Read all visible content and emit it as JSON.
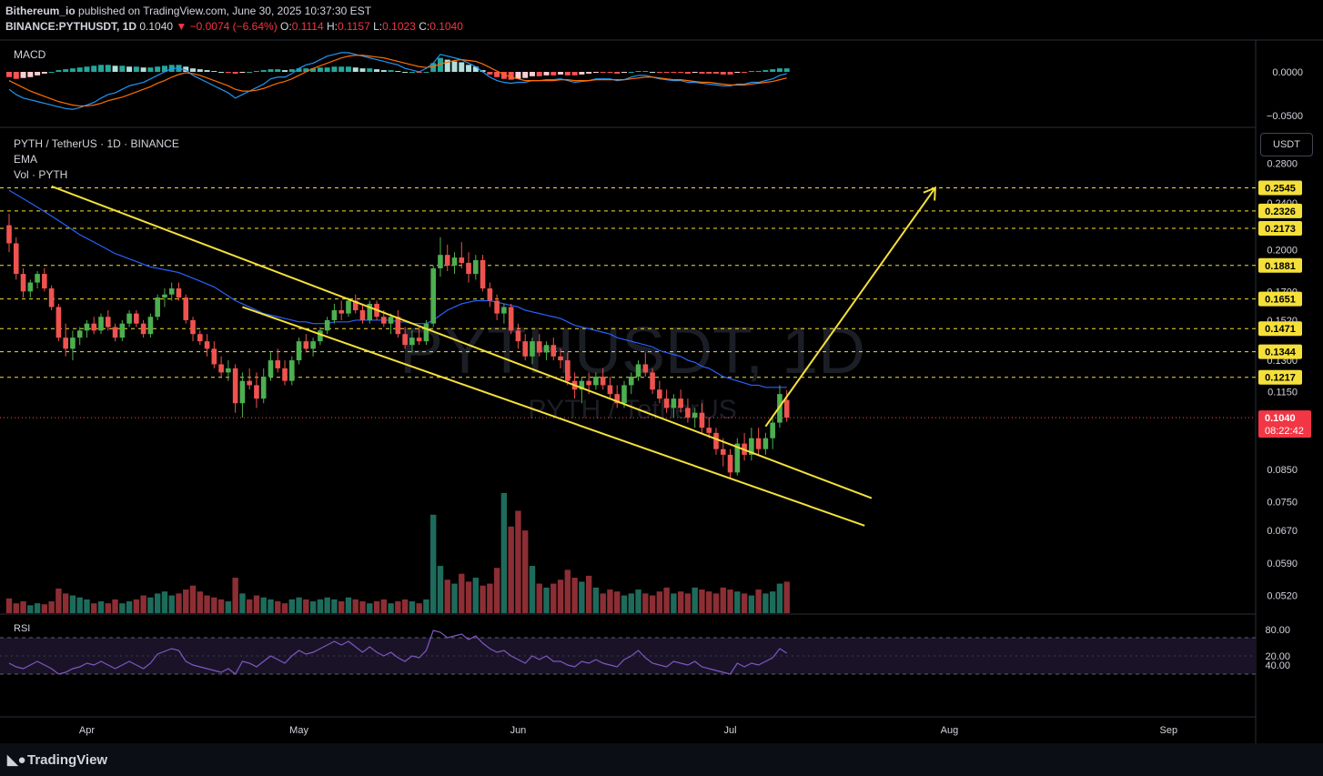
{
  "header": {
    "line1_user": "Bithereum_io",
    "line1_rest": " published on TradingView.com, June 30, 2025 10:37:30 EST",
    "symbol": "BINANCE:PYTHUSDT, 1D",
    "price": "0.1040",
    "change": "▼ −0.0074 (−6.64%)",
    "o_label": "O:",
    "o_val": "0.1114",
    "h_label": "H:",
    "h_val": "0.1157",
    "l_label": "L:",
    "l_val": "0.1023",
    "c_label": "C:",
    "c_val": "0.1040"
  },
  "panes": {
    "macd_label": "MACD",
    "main_title": "PYTH / TetherUS · 1D · BINANCE",
    "ema_label": "EMA",
    "vol_label": "Vol · PYTH",
    "rsi_label": "RSI",
    "watermark": "PYTHUSDT, 1D",
    "watermark_sub": "PYTH / TetherUS",
    "currency_button": "USDT"
  },
  "footer": {
    "brand": "TradingView"
  },
  "colors": {
    "up": "#4caf50",
    "down": "#ef5350",
    "ema": "#2962ff",
    "pattern": "#f5e03a",
    "rsi": "#7e57c2",
    "macd": "#2196f3",
    "signal": "#ff6d00"
  },
  "chart_data": {
    "type": "candlestick",
    "price_axis_ticks": [
      "0.2800",
      "0.2400",
      "0.2000",
      "0.1700",
      "0.1520",
      "0.1300",
      "0.1150",
      "0.0850",
      "0.0750",
      "0.0670",
      "0.0590",
      "0.0520"
    ],
    "time_axis_ticks": [
      "Apr",
      "May",
      "Jun",
      "Jul",
      "Aug",
      "Sep"
    ],
    "macd_axis_ticks": [
      "0.0000",
      "−0.0500"
    ],
    "rsi_axis_ticks": [
      "80.00",
      "40.00",
      "20.00"
    ],
    "levels": [
      "0.2545",
      "0.2326",
      "0.2173",
      "0.1881",
      "0.1651",
      "0.1471",
      "0.1344",
      "0.1217"
    ],
    "last_price": "0.1040",
    "countdown": "08:22:42",
    "patterns": [
      {
        "type": "falling wedge",
        "upper_line": [
          [
            "2025-03-21",
            0.256
          ],
          [
            "2025-07-15",
            0.076
          ]
        ],
        "lower_line": [
          [
            "2025-04-17",
            0.16
          ],
          [
            "2025-07-14",
            0.0683
          ]
        ]
      },
      {
        "type": "target arrow",
        "from": [
          "2025-06-30",
          0.1005
        ],
        "to": [
          "2025-07-24",
          0.2545
        ]
      }
    ],
    "ohlc": [
      [
        0.22,
        0.23,
        0.198,
        0.205
      ],
      [
        0.205,
        0.21,
        0.178,
        0.182
      ],
      [
        0.182,
        0.186,
        0.166,
        0.17
      ],
      [
        0.17,
        0.178,
        0.166,
        0.176
      ],
      [
        0.176,
        0.184,
        0.172,
        0.182
      ],
      [
        0.182,
        0.186,
        0.17,
        0.172
      ],
      [
        0.172,
        0.174,
        0.158,
        0.16
      ],
      [
        0.16,
        0.162,
        0.14,
        0.142
      ],
      [
        0.142,
        0.15,
        0.132,
        0.136
      ],
      [
        0.136,
        0.146,
        0.13,
        0.142
      ],
      [
        0.142,
        0.148,
        0.138,
        0.146
      ],
      [
        0.146,
        0.152,
        0.142,
        0.15
      ],
      [
        0.15,
        0.154,
        0.144,
        0.146
      ],
      [
        0.146,
        0.156,
        0.144,
        0.154
      ],
      [
        0.154,
        0.158,
        0.146,
        0.148
      ],
      [
        0.148,
        0.15,
        0.14,
        0.142
      ],
      [
        0.142,
        0.152,
        0.14,
        0.15
      ],
      [
        0.15,
        0.158,
        0.148,
        0.156
      ],
      [
        0.156,
        0.158,
        0.148,
        0.15
      ],
      [
        0.15,
        0.152,
        0.142,
        0.144
      ],
      [
        0.144,
        0.156,
        0.142,
        0.154
      ],
      [
        0.154,
        0.168,
        0.152,
        0.166
      ],
      [
        0.166,
        0.172,
        0.16,
        0.168
      ],
      [
        0.168,
        0.176,
        0.164,
        0.172
      ],
      [
        0.172,
        0.176,
        0.164,
        0.166
      ],
      [
        0.166,
        0.168,
        0.15,
        0.152
      ],
      [
        0.152,
        0.154,
        0.14,
        0.144
      ],
      [
        0.144,
        0.146,
        0.138,
        0.14
      ],
      [
        0.14,
        0.144,
        0.132,
        0.136
      ],
      [
        0.136,
        0.14,
        0.126,
        0.128
      ],
      [
        0.128,
        0.132,
        0.122,
        0.124
      ],
      [
        0.124,
        0.13,
        0.12,
        0.126
      ],
      [
        0.126,
        0.128,
        0.106,
        0.11
      ],
      [
        0.11,
        0.124,
        0.104,
        0.12
      ],
      [
        0.12,
        0.126,
        0.116,
        0.118
      ],
      [
        0.118,
        0.124,
        0.108,
        0.112
      ],
      [
        0.112,
        0.126,
        0.11,
        0.122
      ],
      [
        0.122,
        0.134,
        0.12,
        0.13
      ],
      [
        0.13,
        0.136,
        0.124,
        0.126
      ],
      [
        0.126,
        0.13,
        0.118,
        0.12
      ],
      [
        0.12,
        0.132,
        0.118,
        0.13
      ],
      [
        0.13,
        0.142,
        0.128,
        0.14
      ],
      [
        0.14,
        0.144,
        0.134,
        0.136
      ],
      [
        0.136,
        0.142,
        0.132,
        0.14
      ],
      [
        0.14,
        0.148,
        0.138,
        0.146
      ],
      [
        0.146,
        0.154,
        0.144,
        0.152
      ],
      [
        0.152,
        0.162,
        0.15,
        0.158
      ],
      [
        0.158,
        0.164,
        0.152,
        0.156
      ],
      [
        0.156,
        0.166,
        0.154,
        0.164
      ],
      [
        0.164,
        0.168,
        0.156,
        0.158
      ],
      [
        0.158,
        0.162,
        0.15,
        0.152
      ],
      [
        0.152,
        0.164,
        0.15,
        0.162
      ],
      [
        0.162,
        0.164,
        0.152,
        0.154
      ],
      [
        0.154,
        0.158,
        0.148,
        0.15
      ],
      [
        0.15,
        0.156,
        0.144,
        0.154
      ],
      [
        0.154,
        0.158,
        0.142,
        0.144
      ],
      [
        0.144,
        0.148,
        0.136,
        0.138
      ],
      [
        0.138,
        0.146,
        0.134,
        0.142
      ],
      [
        0.142,
        0.148,
        0.138,
        0.14
      ],
      [
        0.14,
        0.152,
        0.138,
        0.15
      ],
      [
        0.15,
        0.188,
        0.148,
        0.186
      ],
      [
        0.186,
        0.21,
        0.18,
        0.196
      ],
      [
        0.196,
        0.204,
        0.184,
        0.188
      ],
      [
        0.188,
        0.198,
        0.182,
        0.194
      ],
      [
        0.194,
        0.206,
        0.186,
        0.19
      ],
      [
        0.19,
        0.198,
        0.176,
        0.182
      ],
      [
        0.182,
        0.196,
        0.178,
        0.192
      ],
      [
        0.192,
        0.196,
        0.17,
        0.172
      ],
      [
        0.172,
        0.176,
        0.16,
        0.164
      ],
      [
        0.164,
        0.168,
        0.152,
        0.156
      ],
      [
        0.156,
        0.162,
        0.15,
        0.16
      ],
      [
        0.16,
        0.162,
        0.144,
        0.146
      ],
      [
        0.146,
        0.15,
        0.136,
        0.14
      ],
      [
        0.14,
        0.144,
        0.13,
        0.132
      ],
      [
        0.132,
        0.142,
        0.128,
        0.14
      ],
      [
        0.14,
        0.144,
        0.132,
        0.134
      ],
      [
        0.134,
        0.14,
        0.13,
        0.138
      ],
      [
        0.138,
        0.142,
        0.13,
        0.132
      ],
      [
        0.132,
        0.136,
        0.126,
        0.13
      ],
      [
        0.13,
        0.134,
        0.118,
        0.12
      ],
      [
        0.12,
        0.124,
        0.112,
        0.116
      ],
      [
        0.116,
        0.122,
        0.11,
        0.12
      ],
      [
        0.12,
        0.124,
        0.114,
        0.118
      ],
      [
        0.118,
        0.124,
        0.116,
        0.122
      ],
      [
        0.122,
        0.126,
        0.116,
        0.118
      ],
      [
        0.118,
        0.122,
        0.112,
        0.114
      ],
      [
        0.114,
        0.118,
        0.108,
        0.11
      ],
      [
        0.11,
        0.12,
        0.108,
        0.118
      ],
      [
        0.118,
        0.124,
        0.114,
        0.122
      ],
      [
        0.122,
        0.13,
        0.12,
        0.128
      ],
      [
        0.128,
        0.134,
        0.122,
        0.124
      ],
      [
        0.124,
        0.126,
        0.114,
        0.116
      ],
      [
        0.116,
        0.12,
        0.11,
        0.112
      ],
      [
        0.112,
        0.116,
        0.106,
        0.108
      ],
      [
        0.108,
        0.114,
        0.104,
        0.112
      ],
      [
        0.112,
        0.116,
        0.106,
        0.108
      ],
      [
        0.108,
        0.112,
        0.102,
        0.104
      ],
      [
        0.104,
        0.108,
        0.1,
        0.106
      ],
      [
        0.106,
        0.11,
        0.098,
        0.1
      ],
      [
        0.1,
        0.104,
        0.096,
        0.098
      ],
      [
        0.098,
        0.1,
        0.09,
        0.092
      ],
      [
        0.092,
        0.096,
        0.086,
        0.09
      ],
      [
        0.09,
        0.092,
        0.082,
        0.084
      ],
      [
        0.084,
        0.096,
        0.083,
        0.094
      ],
      [
        0.094,
        0.098,
        0.088,
        0.09
      ],
      [
        0.09,
        0.1,
        0.088,
        0.096
      ],
      [
        0.096,
        0.1,
        0.09,
        0.092
      ],
      [
        0.092,
        0.098,
        0.09,
        0.096
      ],
      [
        0.096,
        0.104,
        0.092,
        0.102
      ],
      [
        0.102,
        0.118,
        0.1,
        0.114
      ],
      [
        0.1114,
        0.1157,
        0.1023,
        0.104
      ]
    ],
    "ema": [
      0.252,
      0.248,
      0.244,
      0.24,
      0.236,
      0.232,
      0.228,
      0.224,
      0.22,
      0.216,
      0.212,
      0.209,
      0.206,
      0.203,
      0.2,
      0.197,
      0.195,
      0.193,
      0.191,
      0.189,
      0.187,
      0.186,
      0.185,
      0.184,
      0.183,
      0.181,
      0.179,
      0.177,
      0.175,
      0.173,
      0.17,
      0.167,
      0.164,
      0.162,
      0.16,
      0.158,
      0.156,
      0.155,
      0.154,
      0.153,
      0.152,
      0.151,
      0.151,
      0.15,
      0.15,
      0.15,
      0.151,
      0.151,
      0.151,
      0.152,
      0.152,
      0.152,
      0.152,
      0.152,
      0.152,
      0.151,
      0.151,
      0.15,
      0.15,
      0.15,
      0.152,
      0.155,
      0.158,
      0.16,
      0.162,
      0.163,
      0.164,
      0.164,
      0.164,
      0.163,
      0.162,
      0.161,
      0.16,
      0.158,
      0.157,
      0.156,
      0.155,
      0.154,
      0.153,
      0.151,
      0.149,
      0.148,
      0.147,
      0.146,
      0.145,
      0.144,
      0.142,
      0.141,
      0.14,
      0.139,
      0.138,
      0.137,
      0.135,
      0.134,
      0.133,
      0.132,
      0.13,
      0.129,
      0.127,
      0.126,
      0.124,
      0.122,
      0.121,
      0.12,
      0.119,
      0.118,
      0.118,
      0.117,
      0.117,
      0.117,
      0.117
    ],
    "rsi": [
      42,
      38,
      36,
      40,
      44,
      40,
      36,
      30,
      32,
      36,
      38,
      42,
      40,
      44,
      40,
      36,
      40,
      44,
      40,
      36,
      42,
      52,
      55,
      58,
      56,
      44,
      40,
      38,
      36,
      34,
      32,
      36,
      30,
      44,
      42,
      38,
      44,
      50,
      46,
      42,
      50,
      56,
      52,
      54,
      58,
      62,
      66,
      62,
      66,
      60,
      54,
      60,
      54,
      50,
      54,
      48,
      44,
      50,
      48,
      56,
      78,
      76,
      70,
      72,
      74,
      68,
      72,
      64,
      58,
      54,
      56,
      50,
      46,
      42,
      50,
      46,
      50,
      44,
      44,
      40,
      38,
      44,
      42,
      46,
      42,
      40,
      38,
      46,
      50,
      56,
      48,
      42,
      40,
      38,
      44,
      42,
      40,
      44,
      38,
      36,
      34,
      32,
      30,
      42,
      38,
      42,
      40,
      44,
      48,
      58,
      53
    ],
    "volume": [
      15,
      10,
      12,
      8,
      10,
      9,
      12,
      25,
      20,
      18,
      16,
      14,
      10,
      12,
      10,
      14,
      10,
      12,
      14,
      18,
      16,
      20,
      22,
      18,
      20,
      24,
      28,
      22,
      18,
      16,
      14,
      12,
      36,
      20,
      14,
      18,
      16,
      14,
      12,
      10,
      14,
      16,
      14,
      12,
      14,
      16,
      14,
      12,
      16,
      14,
      12,
      10,
      12,
      14,
      10,
      12,
      14,
      12,
      10,
      14,
      100,
      48,
      34,
      30,
      40,
      32,
      36,
      28,
      30,
      46,
      122,
      88,
      104,
      84,
      48,
      30,
      26,
      30,
      34,
      44,
      36,
      32,
      38,
      26,
      20,
      24,
      22,
      18,
      20,
      24,
      20,
      18,
      22,
      26,
      20,
      22,
      20,
      26,
      24,
      22,
      20,
      26,
      24,
      22,
      20,
      18,
      24,
      20,
      22,
      30,
      32
    ],
    "macd_hist": [
      -0.006,
      -0.008,
      -0.007,
      -0.006,
      -0.004,
      -0.002,
      0.0,
      0.002,
      0.003,
      0.004,
      0.005,
      0.006,
      0.007,
      0.008,
      0.008,
      0.007,
      0.007,
      0.006,
      0.006,
      0.005,
      0.005,
      0.006,
      0.007,
      0.008,
      0.008,
      0.006,
      0.004,
      0.003,
      0.002,
      0.001,
      0.0,
      -0.001,
      -0.002,
      -0.001,
      0.0,
      0.001,
      0.002,
      0.003,
      0.003,
      0.002,
      0.003,
      0.004,
      0.004,
      0.004,
      0.005,
      0.005,
      0.006,
      0.006,
      0.006,
      0.005,
      0.004,
      0.004,
      0.003,
      0.002,
      0.002,
      0.001,
      0.0,
      0.0,
      -0.001,
      0.0,
      0.01,
      0.016,
      0.014,
      0.012,
      0.011,
      0.008,
      0.006,
      0.002,
      -0.003,
      -0.006,
      -0.008,
      -0.009,
      -0.008,
      -0.007,
      -0.005,
      -0.005,
      -0.004,
      -0.004,
      -0.003,
      -0.004,
      -0.004,
      -0.003,
      -0.002,
      -0.001,
      -0.001,
      -0.001,
      -0.002,
      -0.001,
      0.0,
      0.001,
      0.001,
      0.0,
      -0.001,
      -0.001,
      -0.001,
      -0.001,
      -0.002,
      -0.001,
      -0.002,
      -0.002,
      -0.002,
      -0.003,
      -0.003,
      -0.001,
      -0.001,
      0.001,
      0.001,
      0.002,
      0.003,
      0.004,
      0.004
    ],
    "macd_line": [
      -0.02,
      -0.026,
      -0.03,
      -0.032,
      -0.034,
      -0.036,
      -0.038,
      -0.04,
      -0.042,
      -0.043,
      -0.041,
      -0.038,
      -0.035,
      -0.03,
      -0.026,
      -0.024,
      -0.02,
      -0.016,
      -0.014,
      -0.012,
      -0.008,
      -0.004,
      0.0,
      0.004,
      0.004,
      0.002,
      -0.004,
      -0.008,
      -0.012,
      -0.016,
      -0.02,
      -0.024,
      -0.03,
      -0.026,
      -0.022,
      -0.018,
      -0.014,
      -0.008,
      -0.006,
      -0.006,
      -0.002,
      0.004,
      0.008,
      0.01,
      0.014,
      0.018,
      0.02,
      0.022,
      0.022,
      0.02,
      0.018,
      0.016,
      0.014,
      0.012,
      0.01,
      0.008,
      0.004,
      0.002,
      0.0,
      0.004,
      0.01,
      0.02,
      0.018,
      0.016,
      0.014,
      0.01,
      0.006,
      0.0,
      -0.006,
      -0.01,
      -0.012,
      -0.013,
      -0.012,
      -0.012,
      -0.01,
      -0.01,
      -0.009,
      -0.009,
      -0.008,
      -0.01,
      -0.012,
      -0.011,
      -0.01,
      -0.008,
      -0.008,
      -0.008,
      -0.01,
      -0.009,
      -0.006,
      -0.004,
      -0.004,
      -0.006,
      -0.008,
      -0.009,
      -0.01,
      -0.01,
      -0.012,
      -0.012,
      -0.013,
      -0.014,
      -0.015,
      -0.016,
      -0.016,
      -0.014,
      -0.014,
      -0.012,
      -0.012,
      -0.01,
      -0.008,
      -0.004,
      -0.002
    ],
    "macd_signal": [
      -0.01,
      -0.014,
      -0.018,
      -0.022,
      -0.025,
      -0.028,
      -0.031,
      -0.034,
      -0.036,
      -0.038,
      -0.039,
      -0.039,
      -0.038,
      -0.036,
      -0.033,
      -0.031,
      -0.029,
      -0.026,
      -0.023,
      -0.02,
      -0.017,
      -0.013,
      -0.01,
      -0.006,
      -0.003,
      -0.001,
      -0.002,
      -0.004,
      -0.007,
      -0.01,
      -0.013,
      -0.016,
      -0.02,
      -0.022,
      -0.022,
      -0.021,
      -0.019,
      -0.016,
      -0.013,
      -0.011,
      -0.008,
      -0.004,
      0.0,
      0.004,
      0.007,
      0.01,
      0.013,
      0.016,
      0.018,
      0.019,
      0.019,
      0.018,
      0.017,
      0.016,
      0.014,
      0.012,
      0.01,
      0.008,
      0.006,
      0.005,
      0.006,
      0.009,
      0.011,
      0.013,
      0.014,
      0.013,
      0.012,
      0.009,
      0.005,
      0.001,
      -0.003,
      -0.006,
      -0.008,
      -0.01,
      -0.01,
      -0.01,
      -0.01,
      -0.01,
      -0.009,
      -0.009,
      -0.01,
      -0.01,
      -0.01,
      -0.009,
      -0.009,
      -0.009,
      -0.009,
      -0.009,
      -0.008,
      -0.007,
      -0.006,
      -0.006,
      -0.007,
      -0.008,
      -0.009,
      -0.009,
      -0.01,
      -0.011,
      -0.012,
      -0.012,
      -0.013,
      -0.014,
      -0.015,
      -0.015,
      -0.015,
      -0.014,
      -0.013,
      -0.012,
      -0.011,
      -0.009,
      -0.007
    ]
  }
}
